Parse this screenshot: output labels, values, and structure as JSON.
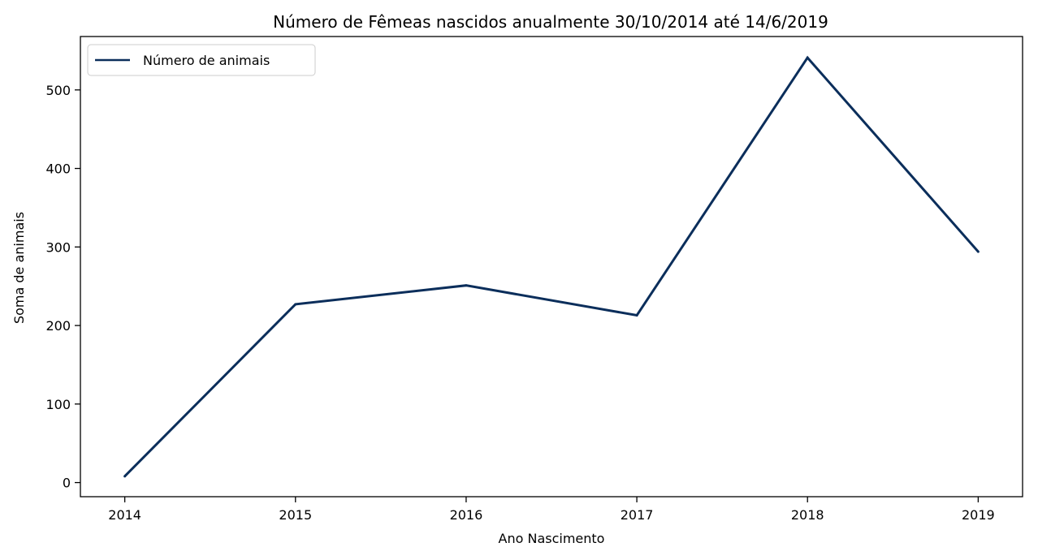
{
  "chart_data": {
    "type": "line",
    "title": "Número de Fêmeas nascidos anualmente 30/10/2014 até 14/6/2019",
    "xlabel": "Ano Nascimento",
    "ylabel": "Soma de animais",
    "x": [
      2014,
      2015,
      2016,
      2017,
      2018,
      2019
    ],
    "xticks": [
      "2014",
      "2015",
      "2016",
      "2017",
      "2018",
      "2019"
    ],
    "yticks": [
      "0",
      "100",
      "200",
      "300",
      "400",
      "500"
    ],
    "ylim": [
      -18,
      568
    ],
    "xlim": [
      2013.74,
      2019.26
    ],
    "series": [
      {
        "name": "Número de animais",
        "values": [
          8,
          227,
          251,
          213,
          541,
          294
        ],
        "color": "#0b2e5b"
      }
    ],
    "legend": "top-left",
    "grid": false
  }
}
